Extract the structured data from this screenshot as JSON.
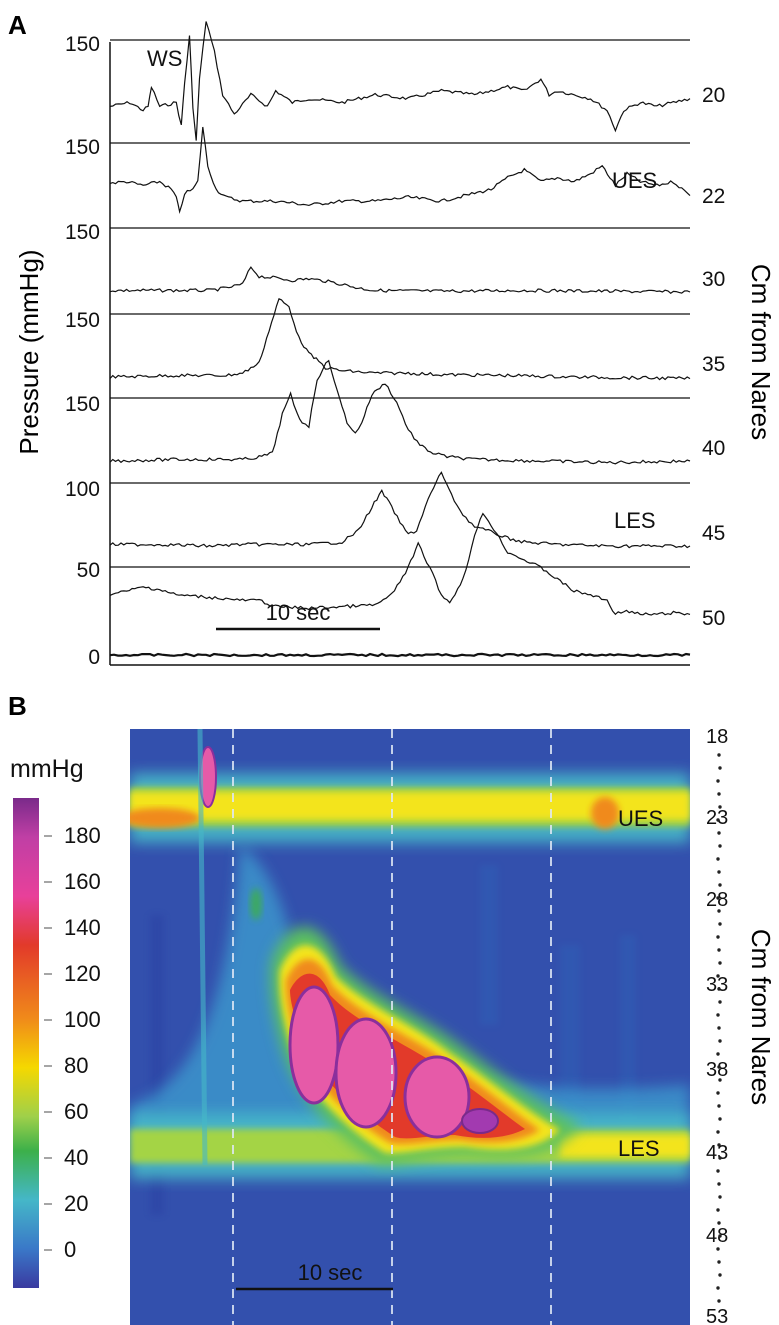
{
  "chart_data": [
    {
      "panel": "A",
      "type": "line",
      "ylabel": "Pressure (mmHg)",
      "right_label": "Cm from Nares",
      "scale_bar": "10 sec",
      "time_range_sec": [
        0,
        35
      ],
      "y_tick_labels": [
        "150",
        "150",
        "150",
        "150",
        "150",
        "100",
        "50",
        "0"
      ],
      "channels": [
        {
          "position_cm": "20",
          "baseline_tick": "150",
          "annotation": "WS",
          "keypoints": [
            [
              0,
              0.2
            ],
            [
              1.2,
              0.25
            ],
            [
              2,
              0.15
            ],
            [
              2.3,
              0.2
            ],
            [
              2.5,
              0.45
            ],
            [
              3,
              0.2
            ],
            [
              4,
              0.25
            ],
            [
              4.3,
              -0.05
            ],
            [
              4.5,
              0.5
            ],
            [
              4.8,
              1.1
            ],
            [
              5,
              0.2
            ],
            [
              5.2,
              -0.25
            ],
            [
              5.4,
              0.55
            ],
            [
              5.8,
              1.3
            ],
            [
              6.3,
              0.9
            ],
            [
              6.8,
              0.35
            ],
            [
              7.5,
              0.1
            ],
            [
              8.5,
              0.35
            ],
            [
              9.5,
              0.2
            ],
            [
              10,
              0.4
            ],
            [
              11,
              0.25
            ],
            [
              12,
              0.3
            ],
            [
              14,
              0.25
            ],
            [
              16,
              0.35
            ],
            [
              18,
              0.3
            ],
            [
              20,
              0.4
            ],
            [
              22,
              0.35
            ],
            [
              24,
              0.45
            ],
            [
              25,
              0.4
            ],
            [
              26,
              0.55
            ],
            [
              26.5,
              0.35
            ],
            [
              27,
              0.4
            ],
            [
              28,
              0.35
            ],
            [
              29,
              0.3
            ],
            [
              30,
              0.15
            ],
            [
              30.5,
              -0.1
            ],
            [
              31,
              0.15
            ],
            [
              32,
              0.25
            ],
            [
              33,
              0.2
            ],
            [
              34,
              0.25
            ],
            [
              35,
              0.3
            ]
          ]
        },
        {
          "position_cm": "22",
          "baseline_tick": "150",
          "annotation": "UES",
          "keypoints": [
            [
              0,
              0.28
            ],
            [
              1,
              0.3
            ],
            [
              2,
              0.25
            ],
            [
              3,
              0.3
            ],
            [
              3.7,
              0.2
            ],
            [
              4,
              0.1
            ],
            [
              4.2,
              -0.1
            ],
            [
              4.5,
              0.15
            ],
            [
              5,
              0.2
            ],
            [
              5.3,
              0.3
            ],
            [
              5.6,
              1.0
            ],
            [
              5.9,
              0.5
            ],
            [
              6.4,
              0.2
            ],
            [
              7,
              0.1
            ],
            [
              8,
              0.05
            ],
            [
              10,
              0.05
            ],
            [
              12,
              0.0
            ],
            [
              14,
              0.05
            ],
            [
              16,
              0.05
            ],
            [
              18,
              0.1
            ],
            [
              20,
              0.05
            ],
            [
              22,
              0.15
            ],
            [
              23,
              0.2
            ],
            [
              24,
              0.35
            ],
            [
              25,
              0.45
            ],
            [
              26,
              0.3
            ],
            [
              27,
              0.35
            ],
            [
              28,
              0.3
            ],
            [
              29,
              0.4
            ],
            [
              29.7,
              0.5
            ],
            [
              30.5,
              0.25
            ],
            [
              31.2,
              0.4
            ],
            [
              32,
              0.3
            ],
            [
              33,
              0.25
            ],
            [
              34,
              0.3
            ],
            [
              35,
              0.12
            ]
          ]
        },
        {
          "position_cm": "30",
          "baseline_tick": "150",
          "annotation": "",
          "keypoints": [
            [
              0,
              0.02
            ],
            [
              3,
              0.02
            ],
            [
              6,
              0.02
            ],
            [
              7,
              0.05
            ],
            [
              8,
              0.1
            ],
            [
              8.5,
              0.32
            ],
            [
              9,
              0.2
            ],
            [
              10,
              0.18
            ],
            [
              11,
              0.15
            ],
            [
              12,
              0.17
            ],
            [
              13,
              0.14
            ],
            [
              14,
              0.1
            ],
            [
              15,
              0.05
            ],
            [
              16,
              0.02
            ],
            [
              20,
              0.01
            ],
            [
              25,
              0.02
            ],
            [
              30,
              0.01
            ],
            [
              35,
              0.0
            ]
          ]
        },
        {
          "position_cm": "35",
          "baseline_tick": "150",
          "annotation": "",
          "keypoints": [
            [
              0,
              0.0
            ],
            [
              4,
              0.02
            ],
            [
              7,
              0.02
            ],
            [
              8,
              0.05
            ],
            [
              9,
              0.18
            ],
            [
              9.6,
              0.6
            ],
            [
              10.2,
              1.0
            ],
            [
              10.8,
              0.9
            ],
            [
              11.4,
              0.5
            ],
            [
              12,
              0.3
            ],
            [
              12.6,
              0.2
            ],
            [
              13,
              0.12
            ],
            [
              14,
              0.08
            ],
            [
              16,
              0.05
            ],
            [
              18,
              0.05
            ],
            [
              20,
              0.03
            ],
            [
              24,
              0.02
            ],
            [
              28,
              0.0
            ],
            [
              35,
              -0.02
            ]
          ]
        },
        {
          "position_cm": "40",
          "baseline_tick": "150",
          "annotation": "",
          "keypoints": [
            [
              0,
              0.0
            ],
            [
              4,
              0.02
            ],
            [
              8,
              0.02
            ],
            [
              9,
              0.05
            ],
            [
              9.8,
              0.1
            ],
            [
              10.4,
              0.6
            ],
            [
              10.9,
              0.85
            ],
            [
              11.3,
              0.6
            ],
            [
              11.6,
              0.5
            ],
            [
              12,
              0.45
            ],
            [
              12.5,
              1.05
            ],
            [
              13.2,
              1.3
            ],
            [
              13.7,
              0.9
            ],
            [
              14.3,
              0.5
            ],
            [
              14.8,
              0.35
            ],
            [
              15.2,
              0.5
            ],
            [
              15.8,
              0.85
            ],
            [
              16.6,
              1.0
            ],
            [
              17.3,
              0.75
            ],
            [
              18,
              0.4
            ],
            [
              18.7,
              0.2
            ],
            [
              19.5,
              0.1
            ],
            [
              20.5,
              0.05
            ],
            [
              22,
              0.02
            ],
            [
              26,
              0.0
            ],
            [
              30,
              -0.02
            ],
            [
              35,
              0.0
            ]
          ]
        },
        {
          "position_cm": "45",
          "baseline_tick": "100",
          "annotation": "LES",
          "keypoints": [
            [
              0,
              0.02
            ],
            [
              3,
              0.02
            ],
            [
              6,
              0.0
            ],
            [
              8,
              0.02
            ],
            [
              10,
              0.02
            ],
            [
              12,
              0.02
            ],
            [
              14,
              0.05
            ],
            [
              15,
              0.2
            ],
            [
              15.8,
              0.5
            ],
            [
              16.4,
              0.7
            ],
            [
              17,
              0.5
            ],
            [
              17.5,
              0.3
            ],
            [
              18,
              0.15
            ],
            [
              18.5,
              0.2
            ],
            [
              19.2,
              0.6
            ],
            [
              20,
              0.95
            ],
            [
              20.6,
              0.65
            ],
            [
              21.3,
              0.4
            ],
            [
              22,
              0.25
            ],
            [
              23,
              0.18
            ],
            [
              24,
              0.1
            ],
            [
              25,
              0.05
            ],
            [
              27,
              0.02
            ],
            [
              30,
              0.0
            ],
            [
              35,
              0.0
            ]
          ]
        },
        {
          "position_cm": "50",
          "baseline_tick": "50",
          "annotation": "",
          "keypoints": [
            [
              0,
              0.45
            ],
            [
              1,
              0.5
            ],
            [
              2,
              0.55
            ],
            [
              3,
              0.52
            ],
            [
              4,
              0.45
            ],
            [
              6,
              0.42
            ],
            [
              8,
              0.38
            ],
            [
              9,
              0.38
            ],
            [
              10,
              0.3
            ],
            [
              12,
              0.28
            ],
            [
              14,
              0.3
            ],
            [
              16,
              0.32
            ],
            [
              17,
              0.45
            ],
            [
              18,
              0.8
            ],
            [
              18.6,
              1.1
            ],
            [
              19.3,
              0.8
            ],
            [
              20,
              0.45
            ],
            [
              20.5,
              0.35
            ],
            [
              21.3,
              0.65
            ],
            [
              22,
              1.2
            ],
            [
              22.5,
              1.5
            ],
            [
              23,
              1.35
            ],
            [
              24,
              1.0
            ],
            [
              25,
              0.9
            ],
            [
              26,
              0.8
            ],
            [
              27,
              0.65
            ],
            [
              28,
              0.5
            ],
            [
              29,
              0.45
            ],
            [
              30,
              0.38
            ],
            [
              30.5,
              0.2
            ],
            [
              31,
              0.25
            ],
            [
              32,
              0.2
            ],
            [
              33,
              0.2
            ],
            [
              34,
              0.22
            ],
            [
              35,
              0.2
            ]
          ]
        }
      ]
    },
    {
      "panel": "B",
      "type": "heatmap",
      "right_label": "Cm from Nares",
      "colorbar_title": "mmHg",
      "colorbar_ticks": [
        180,
        160,
        140,
        120,
        100,
        80,
        60,
        40,
        20,
        0
      ],
      "y_ticks_cm": [
        "18",
        "23",
        "28",
        "33",
        "38",
        "43",
        "48",
        "53"
      ],
      "scale_bar": "10 sec",
      "time_range_sec": [
        0,
        35
      ],
      "depth_range_cm": [
        18,
        53
      ],
      "annotations": [
        "UES",
        "LES"
      ],
      "dashed_time_markers_sec": [
        6.5,
        16.6,
        26.8
      ],
      "pressure_features": [
        {
          "kind": "band",
          "depth_cm": 22.5,
          "t_start": 0,
          "t_end": 35,
          "pressure": 60
        },
        {
          "kind": "blob",
          "t_sec": 5.3,
          "depth_cm": 23,
          "pressure": 190
        },
        {
          "kind": "blob",
          "t_sec": 10.5,
          "depth_cm": 37,
          "pressure": 170
        },
        {
          "kind": "blob",
          "t_sec": 15,
          "depth_cm": 39,
          "pressure": 170
        },
        {
          "kind": "blob",
          "t_sec": 19.5,
          "depth_cm": 40.5,
          "pressure": 160
        },
        {
          "kind": "blob",
          "t_sec": 22.5,
          "depth_cm": 42.5,
          "pressure": 130
        },
        {
          "kind": "band",
          "depth_cm": 43.5,
          "t_start": 0,
          "t_end": 35,
          "pressure": 55
        }
      ]
    }
  ],
  "panels": {
    "a_label": "A",
    "b_label": "B"
  },
  "panel_a": {
    "ylabel": "Pressure (mmHg)",
    "right_label": "Cm from Nares",
    "ticks_left": [
      "150",
      "150",
      "150",
      "150",
      "150",
      "100",
      "50",
      "0"
    ],
    "positions": [
      "20",
      "22",
      "30",
      "35",
      "40",
      "45",
      "50"
    ],
    "ws_label": "WS",
    "ues_label": "UES",
    "les_label": "LES",
    "scalebar": "10 sec"
  },
  "panel_b": {
    "colorbar_title": "mmHg",
    "colorbar_ticks": [
      "180",
      "160",
      "140",
      "120",
      "100",
      "80",
      "60",
      "40",
      "20",
      "0"
    ],
    "ticks_right": [
      "18",
      "23",
      "28",
      "33",
      "38",
      "43",
      "48",
      "53"
    ],
    "right_label": "Cm from Nares",
    "ues_label": "UES",
    "les_label": "LES",
    "scalebar": "10 sec"
  },
  "colors": {
    "trace": "#111111",
    "heat_low": "#2f4aa8",
    "heat_mid": "#45b7c8",
    "heat_yellow": "#f5e400",
    "heat_red": "#e23a2a",
    "heat_peak": "#e858a8",
    "heat_outline": "#7f2a9a"
  }
}
